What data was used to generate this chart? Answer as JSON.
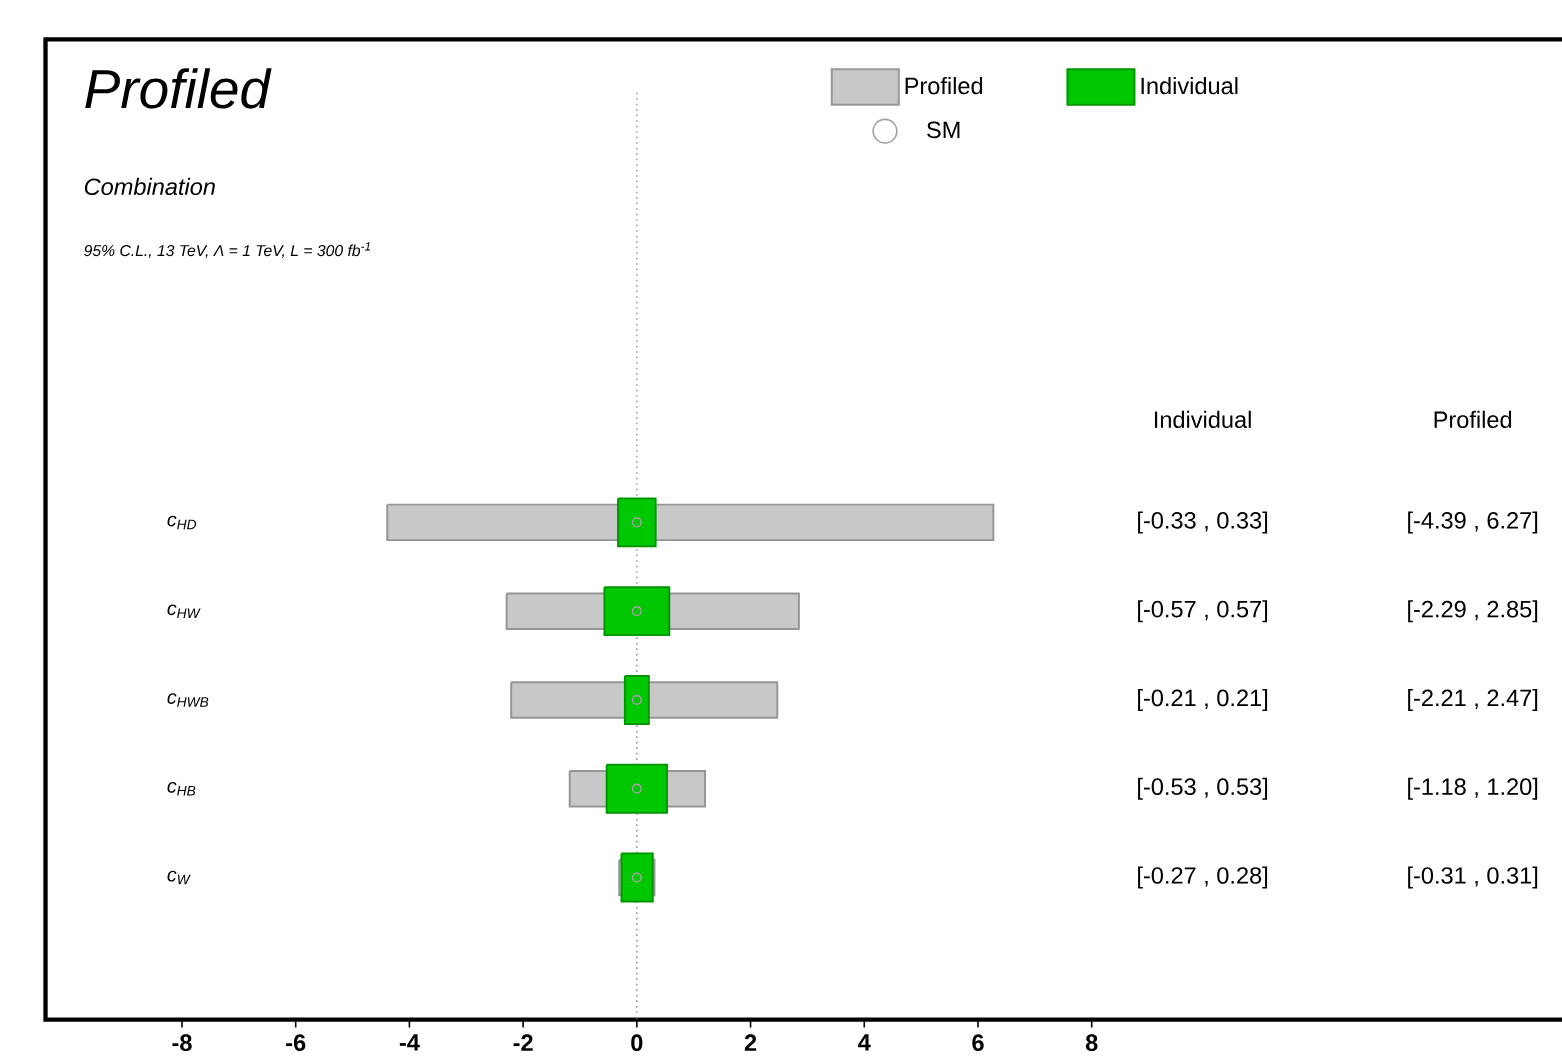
{
  "chart_data": {
    "type": "bar",
    "orientation": "horizontal",
    "title": "Profiled",
    "subtitle": "Combination",
    "annotations": [
      "95% C.L., 13 TeV, Λ = 1 TeV, L = 300 fb$^{-1}$"
    ],
    "categories": [
      "c$_{HD}$",
      "c$_{HW}$",
      "c$_{HWB}$",
      "c$_{HB}$",
      "c$_{W}$"
    ],
    "series": [
      {
        "name": "Profiled",
        "color": "#c8c8c8",
        "base": [
          -4.39,
          -2.29,
          -2.21,
          -1.18,
          -0.31
        ],
        "values": [
          10.66,
          5.14,
          4.68,
          2.38,
          0.62
        ],
        "value_labels": [
          "[-4.39 , 6.27]",
          "[-2.29 , 2.85]",
          "[-2.21 , 2.47]",
          "[-1.18 , 1.20]",
          "[-0.31 , 0.31]"
        ]
      },
      {
        "name": "Individual",
        "color": "#00c800",
        "base": [
          -0.33,
          -0.57,
          -0.21,
          -0.53,
          -0.27
        ],
        "values": [
          0.66,
          1.14,
          0.42,
          1.06,
          0.55
        ],
        "value_labels": [
          "[-0.33 , 0.33]",
          "[-0.57 , 0.57]",
          "[-0.21 , 0.21]",
          "[-0.53 , 0.53]",
          "[-0.27 , 0.28]"
        ]
      },
      {
        "name": "SM",
        "type": "scatter",
        "color": "#a0a0a0",
        "marker": "circle",
        "values": [
          0,
          0,
          0,
          0,
          0
        ]
      }
    ],
    "xlim": [
      -10.4,
      17
    ],
    "xticks": [
      -8,
      -6,
      -4,
      -2,
      0,
      2,
      4,
      6,
      8
    ],
    "ref_lines": [
      {
        "axis": "x",
        "value": 0,
        "line_style": "dotted",
        "color": "#999999"
      }
    ],
    "legend": "top"
  }
}
